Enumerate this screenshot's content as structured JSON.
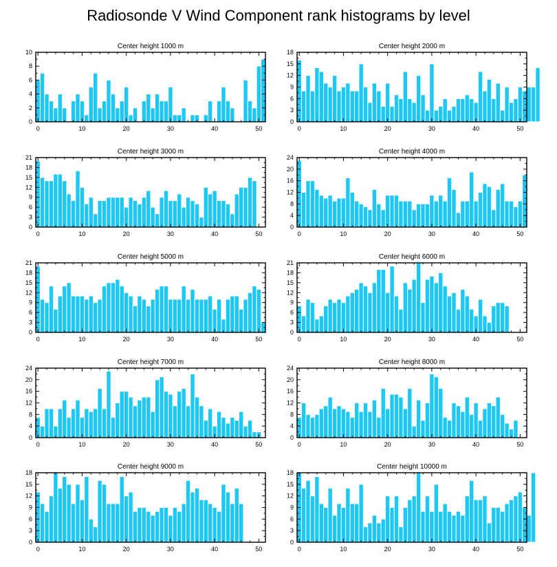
{
  "figure": {
    "title": "Radiosonde V Wind Component rank histograms by level"
  },
  "colors": {
    "bar": "#1ec8f5",
    "bar_edge": "#ffffff",
    "axis": "#000000"
  },
  "chart_data": [
    {
      "type": "bar",
      "title": "Center height 1000 m",
      "xlim": [
        -0.5,
        51.5
      ],
      "xticks": [
        0,
        10,
        20,
        30,
        40,
        50
      ],
      "ylim": [
        0,
        10
      ],
      "yticks": [
        0,
        2,
        4,
        6,
        8,
        10
      ],
      "values": [
        6,
        7,
        4,
        3,
        2,
        4,
        2,
        0,
        3,
        4,
        3,
        1,
        5,
        7,
        2,
        3,
        6,
        4,
        2,
        3,
        5,
        1,
        2,
        0,
        3,
        4,
        2,
        4,
        3,
        3,
        5,
        1,
        1,
        2,
        0,
        1,
        1,
        0,
        1,
        3,
        0,
        3,
        5,
        3,
        2,
        0,
        0,
        6,
        3,
        2,
        8,
        9
      ]
    },
    {
      "type": "bar",
      "title": "Center height 2000 m",
      "xlim": [
        -0.5,
        51.5
      ],
      "xticks": [
        0,
        10,
        20,
        30,
        40,
        50
      ],
      "ylim": [
        0,
        18
      ],
      "yticks": [
        0,
        3,
        6,
        9,
        12,
        15,
        18
      ],
      "values": [
        16,
        8,
        12,
        8,
        14,
        13,
        10,
        9,
        12,
        8,
        9,
        10,
        8,
        8,
        15,
        9,
        5,
        10,
        8,
        4,
        10,
        4,
        7,
        6,
        13,
        6,
        5,
        12,
        7,
        3,
        15,
        3,
        4,
        6,
        3,
        4,
        6,
        6,
        7,
        6,
        5,
        13,
        8,
        11,
        6,
        10,
        3,
        9,
        5,
        6,
        9,
        8,
        9,
        9,
        14
      ]
    },
    {
      "type": "bar",
      "title": "Center height 3000 m",
      "xlim": [
        -0.5,
        51.5
      ],
      "xticks": [
        0,
        10,
        20,
        30,
        40,
        50
      ],
      "ylim": [
        0,
        21
      ],
      "yticks": [
        0,
        3,
        6,
        9,
        12,
        15,
        18,
        21
      ],
      "values": [
        20,
        15,
        14,
        14,
        16,
        16,
        14,
        10,
        8,
        17,
        12,
        7,
        9,
        4,
        8,
        8,
        9,
        9,
        9,
        9,
        6,
        9,
        8,
        7,
        9,
        11,
        6,
        4,
        9,
        11,
        8,
        8,
        10,
        6,
        9,
        8,
        7,
        3,
        12,
        10,
        11,
        8,
        8,
        7,
        4,
        10,
        12,
        12,
        15,
        14
      ]
    },
    {
      "type": "bar",
      "title": "Center height 4000 m",
      "xlim": [
        -0.5,
        51.5
      ],
      "xticks": [
        0,
        10,
        20,
        30,
        40,
        50
      ],
      "ylim": [
        0,
        24
      ],
      "yticks": [
        0,
        4,
        8,
        12,
        16,
        20,
        24
      ],
      "values": [
        23,
        12,
        16,
        16,
        13,
        11,
        10,
        11,
        9,
        10,
        10,
        17,
        12,
        9,
        8,
        7,
        6,
        13,
        8,
        6,
        11,
        11,
        11,
        9,
        9,
        9,
        6,
        8,
        8,
        8,
        11,
        9,
        11,
        9,
        17,
        13,
        5,
        9,
        9,
        19,
        9,
        12,
        15,
        14,
        6,
        13,
        15,
        9,
        9,
        7,
        9,
        18
      ]
    },
    {
      "type": "bar",
      "title": "Center height 5000 m",
      "xlim": [
        -0.5,
        51.5
      ],
      "xticks": [
        0,
        10,
        20,
        30,
        40,
        50
      ],
      "ylim": [
        0,
        21
      ],
      "yticks": [
        0,
        3,
        6,
        9,
        12,
        15,
        18,
        21
      ],
      "values": [
        20,
        10,
        9,
        14,
        7,
        11,
        14,
        15,
        11,
        11,
        11,
        10,
        11,
        9,
        10,
        14,
        15,
        15,
        16,
        14,
        12,
        11,
        8,
        11,
        10,
        8,
        10,
        13,
        14,
        14,
        10,
        10,
        10,
        14,
        10,
        13,
        10,
        10,
        10,
        11,
        7,
        10,
        4,
        10,
        11,
        11,
        7,
        10,
        12,
        14,
        13,
        3
      ]
    },
    {
      "type": "bar",
      "title": "Center height 6000 m",
      "xlim": [
        -0.5,
        51.5
      ],
      "xticks": [
        0,
        10,
        20,
        30,
        40,
        50
      ],
      "ylim": [
        0,
        21
      ],
      "yticks": [
        0,
        3,
        6,
        9,
        12,
        15,
        18,
        21
      ],
      "values": [
        8,
        5,
        10,
        9,
        4,
        5,
        8,
        10,
        9,
        10,
        9,
        11,
        12,
        13,
        15,
        14,
        12,
        15,
        19,
        19,
        12,
        20,
        11,
        7,
        15,
        13,
        16,
        21,
        9,
        16,
        17,
        15,
        18,
        14,
        11,
        12,
        7,
        13,
        11,
        7,
        5,
        10,
        5,
        3,
        8,
        9,
        9,
        8
      ]
    },
    {
      "type": "bar",
      "title": "Center height 7000 m",
      "xlim": [
        -0.5,
        51.5
      ],
      "xticks": [
        0,
        10,
        20,
        30,
        40,
        50
      ],
      "ylim": [
        0,
        24
      ],
      "yticks": [
        0,
        4,
        8,
        12,
        16,
        20,
        24
      ],
      "values": [
        7,
        4,
        10,
        10,
        4,
        10,
        13,
        7,
        10,
        13,
        7,
        10,
        9,
        10,
        17,
        10,
        23,
        7,
        12,
        16,
        16,
        14,
        11,
        13,
        14,
        14,
        9,
        20,
        21,
        16,
        15,
        11,
        16,
        17,
        11,
        22,
        14,
        11,
        6,
        10,
        4,
        9,
        7,
        5,
        7,
        6,
        9,
        4,
        6,
        2,
        2
      ]
    },
    {
      "type": "bar",
      "title": "Center height 8000 m",
      "xlim": [
        -0.5,
        51.5
      ],
      "xticks": [
        0,
        10,
        20,
        30,
        40,
        50
      ],
      "ylim": [
        0,
        24
      ],
      "yticks": [
        0,
        4,
        8,
        12,
        16,
        20,
        24
      ],
      "values": [
        7,
        12,
        8,
        7,
        8,
        10,
        11,
        14,
        10,
        11,
        10,
        9,
        7,
        12,
        9,
        12,
        9,
        13,
        7,
        17,
        10,
        15,
        15,
        14,
        10,
        17,
        4,
        13,
        6,
        12,
        22,
        21,
        17,
        7,
        6,
        12,
        11,
        9,
        14,
        8,
        12,
        6,
        10,
        12,
        11,
        14,
        8,
        5,
        3,
        6
      ]
    },
    {
      "type": "bar",
      "title": "Center height 9000 m",
      "xlim": [
        -0.5,
        51.5
      ],
      "xticks": [
        0,
        10,
        20,
        30,
        40,
        50
      ],
      "ylim": [
        0,
        18
      ],
      "yticks": [
        0,
        3,
        6,
        9,
        12,
        15,
        18
      ],
      "values": [
        13,
        10,
        8,
        12,
        18,
        14,
        17,
        15,
        10,
        15,
        11,
        17,
        6,
        4,
        16,
        15,
        10,
        10,
        10,
        17,
        12,
        13,
        8,
        9,
        9,
        8,
        7,
        8,
        9,
        9,
        7,
        9,
        8,
        10,
        16,
        13,
        14,
        11,
        11,
        10,
        9,
        8,
        15,
        13,
        10,
        14,
        10
      ]
    },
    {
      "type": "bar",
      "title": "Center height 10000 m",
      "xlim": [
        -0.5,
        51.5
      ],
      "xticks": [
        0,
        10,
        20,
        30,
        40,
        50
      ],
      "ylim": [
        0,
        18
      ],
      "yticks": [
        0,
        3,
        6,
        9,
        12,
        15,
        18
      ],
      "values": [
        18,
        14,
        16,
        12,
        17,
        10,
        9,
        14,
        7,
        10,
        9,
        14,
        10,
        10,
        15,
        4,
        5,
        7,
        5,
        6,
        12,
        9,
        12,
        4,
        9,
        11,
        12,
        18,
        8,
        12,
        8,
        15,
        8,
        10,
        8,
        7,
        8,
        7,
        12,
        16,
        11,
        11,
        12,
        5,
        9,
        9,
        8,
        10,
        11,
        12,
        13,
        9,
        7,
        18
      ]
    }
  ]
}
